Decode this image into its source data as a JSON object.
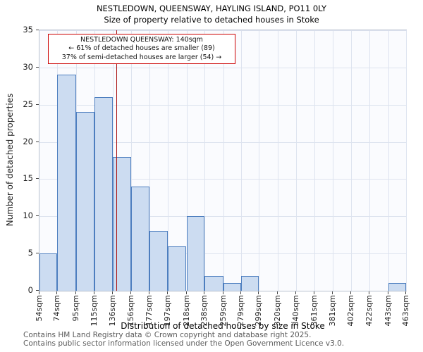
{
  "title": "NESTLEDOWN, QUEENSWAY, HAYLING ISLAND, PO11 0LY",
  "subtitle": "Size of property relative to detached houses in Stoke",
  "chart_data": {
    "type": "bar",
    "title": "NESTLEDOWN, QUEENSWAY, HAYLING ISLAND, PO11 0LY",
    "subtitle": "Size of property relative to detached houses in Stoke",
    "xlabel": "Distribution of detached houses by size in Stoke",
    "ylabel": "Number of detached properties",
    "ylim": [
      0,
      35
    ],
    "yticks": [
      0,
      5,
      10,
      15,
      20,
      25,
      30,
      35
    ],
    "ytick_step": 5,
    "grid": true,
    "bin_edges_sqm": [
      54,
      74,
      95,
      115,
      136,
      156,
      177,
      197,
      218,
      238,
      259,
      279,
      299,
      320,
      340,
      361,
      381,
      402,
      422,
      443,
      463
    ],
    "tick_labels": [
      "54sqm",
      "74sqm",
      "95sqm",
      "115sqm",
      "136sqm",
      "156sqm",
      "177sqm",
      "197sqm",
      "218sqm",
      "238sqm",
      "259sqm",
      "279sqm",
      "299sqm",
      "320sqm",
      "340sqm",
      "361sqm",
      "381sqm",
      "402sqm",
      "422sqm",
      "443sqm",
      "463sqm"
    ],
    "values": [
      5,
      29,
      24,
      26,
      18,
      14,
      8,
      6,
      10,
      2,
      1,
      2,
      0,
      0,
      0,
      0,
      0,
      0,
      0,
      1
    ],
    "marker": {
      "value_sqm": 140,
      "color": "#aa1111"
    },
    "annotation": {
      "lines": [
        "NESTLEDOWN QUEENSWAY: 140sqm",
        "← 61% of detached houses are smaller (89)",
        "37% of semi-detached houses are larger (54) →"
      ],
      "border_color": "#cc0000"
    },
    "colors": {
      "bar_fill": "#ccdcf1",
      "bar_border": "#4d7ebf",
      "marker": "#aa1111",
      "grid": "#dde3ef"
    }
  },
  "footer": {
    "line1": "Contains HM Land Registry data © Crown copyright and database right 2025.",
    "line2": "Contains public sector information licensed under the Open Government Licence v3.0."
  }
}
